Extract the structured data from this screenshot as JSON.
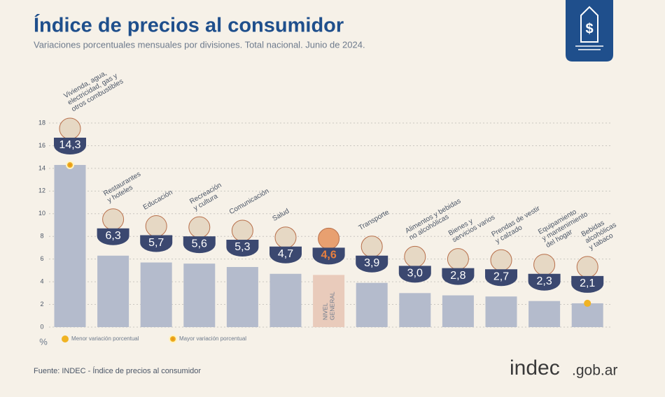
{
  "chart_data": {
    "type": "bar",
    "title": "Índice de precios al consumidor",
    "subtitle": "Variaciones porcentuales mensuales por divisiones. Total nacional. Junio de 2024.",
    "categories": [
      "Vivienda, agua,\nelectricidad, gas y\notros combustibles",
      "Restaurantes\ny hoteles",
      "Educación",
      "Recreación\ny cultura",
      "Comunicación",
      "Salud",
      "NIVEL\nGENERAL",
      "Transporte",
      "Alimentos y bebidas\nno alcohólicas",
      "Bienes y\nservicios varios",
      "Prendas de vestir\ny calzado",
      "Equipamiento\ny mantenimiento\ndel hogar",
      "Bebidas\nalcohólicas\ny tabaco"
    ],
    "values": [
      14.3,
      6.3,
      5.7,
      5.6,
      5.3,
      4.7,
      4.6,
      3.9,
      3.0,
      2.8,
      2.7,
      2.3,
      2.1
    ],
    "value_labels": [
      "14,3",
      "6,3",
      "5,7",
      "5,6",
      "5,3",
      "4,7",
      "4,6",
      "3,9",
      "3,0",
      "2,8",
      "2,7",
      "2,3",
      "2,1"
    ],
    "colors": [
      "#b4bbcc",
      "#b4bbcc",
      "#b4bbcc",
      "#b4bbcc",
      "#b4bbcc",
      "#b4bbcc",
      "#e9cbbb",
      "#b4bbcc",
      "#b4bbcc",
      "#b4bbcc",
      "#b4bbcc",
      "#b4bbcc",
      "#b4bbcc"
    ],
    "value_label_colors": [
      "#ffffff",
      "#ffffff",
      "#ffffff",
      "#ffffff",
      "#ffffff",
      "#ffffff",
      "#e8803f",
      "#ffffff",
      "#ffffff",
      "#ffffff",
      "#ffffff",
      "#ffffff",
      "#ffffff"
    ],
    "ylim": [
      0,
      18
    ],
    "yticks": [
      0,
      2,
      4,
      6,
      8,
      10,
      12,
      14,
      16,
      18
    ],
    "y_unit": "%",
    "grid": true,
    "legend": [
      "Menor variación porcentual",
      "Mayor variación porcentual"
    ],
    "source": "Fuente: INDEC - Índice de precios al consumidor"
  },
  "logo": {
    "name": "indec",
    "domain": ".gob.ar"
  }
}
